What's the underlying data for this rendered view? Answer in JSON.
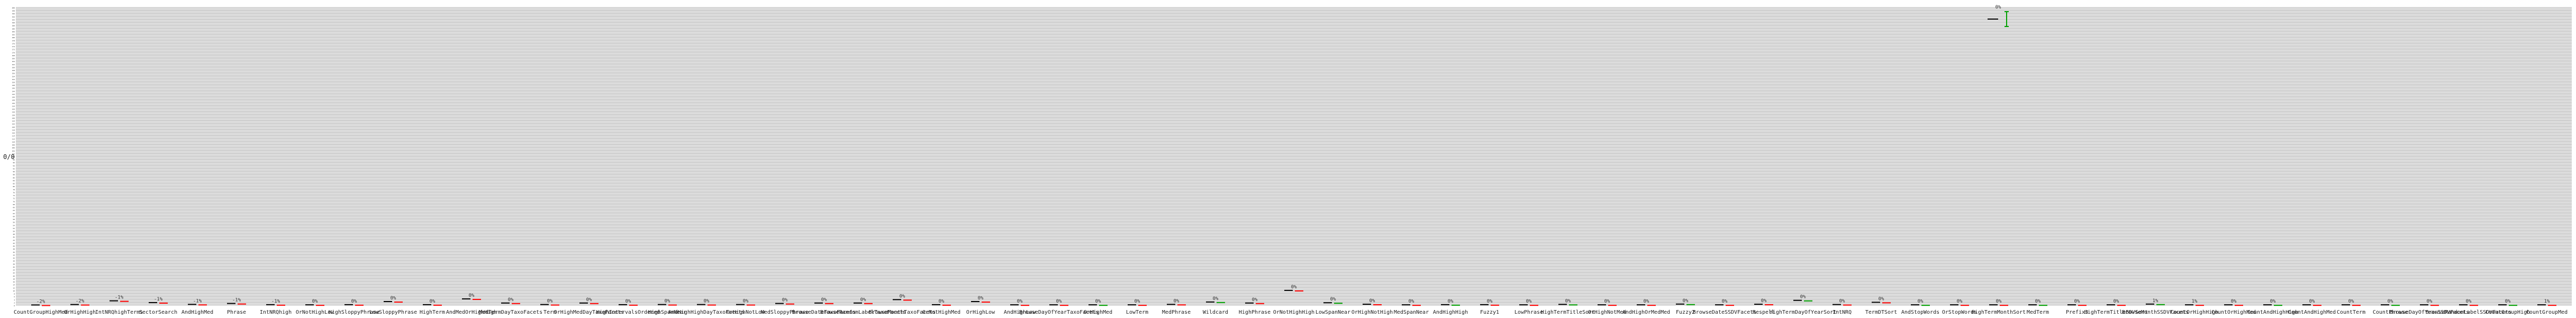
{
  "chart_data": {
    "type": "bar",
    "ylabel": "0/0",
    "ylim": [
      0,
      200
    ],
    "ytick_step": 2,
    "grid": true,
    "series_colors": [
      "#000000",
      "#ff0000",
      "#00a000"
    ],
    "categories": [
      "CountGroupHighMed",
      "OrHighHigh",
      "IntNRQhighTerms",
      "SectorSearch",
      "AndHighMed",
      "Phrase",
      "IntNRQhigh",
      "OrNotHighLow",
      "HighSloppyPhrase",
      "LowSloppyPhrase",
      "HighTerm",
      "AndMedOrHighHigh",
      "MedTermDayTaxoFacets",
      "Term",
      "OrHighMedDayTaxoFacets",
      "HighIntervalsOrdered",
      "HighSpanNear",
      "AndHighHighDayTaxoFacets",
      "OrHighNotLow",
      "MedSloppyPhrase",
      "BrowseDateTaxoFacets",
      "BrowseRandomLabelTaxoFacets",
      "BrowseMonthTaxoFacets",
      "OrNotHighMed",
      "OrHighLow",
      "AndHighLow",
      "BrowseDayOfYearTaxoFacets",
      "OrHighMed",
      "LowTerm",
      "MedPhrase",
      "Wildcard",
      "HighPhrase",
      "OrNotHighHigh",
      "LowSpanNear",
      "OrHighNotHigh",
      "MedSpanNear",
      "AndHighHigh",
      "Fuzzy1",
      "LowPhrase",
      "HighTermTitleSort",
      "OrHighNotMed",
      "AndHighOrMedMed",
      "Fuzzy2",
      "BrowseDateSSDVFacets",
      "Respell",
      "HighTermDayOfYearSort",
      "IntNRQ",
      "TermDTSort",
      "AndStopWords",
      "OrStopWords",
      "HighTermMonthSort",
      "MedTerm",
      "Prefix3",
      "HighTermTitleBDVSort",
      "BrowseMonthSSDVFacets",
      "CountOrHighHigh",
      "CountOrHighMed",
      "CountAndHighHigh",
      "CountAndHighMed",
      "CountTerm",
      "CountPhrase",
      "BrowseDayOfYearSSDVFacets",
      "BrowseRandomLabelSSDVFacets",
      "CountGroupHigh",
      "CountGroupMed"
    ],
    "visible_category_labels": [
      "CountOrHighHigh",
      "CountOrHighMed",
      "HighSectorSearch",
      "CountOrHighMed",
      "Phrase",
      "IntNRQ",
      "HighTermDayOfYearSort",
      "BrowseDateTaxoFacets",
      "OrHighNotHigh",
      "HighIntervalsOrdered",
      "Term",
      "OrHighMedDayTaxoFacets",
      "OrHighNotLow",
      "MedSloppyPhrase",
      "OrHighNotHigh",
      "Wildcard",
      "BrowseMonthTaxoFacets",
      "OrHighMed",
      "OrStopWords",
      "OrHighHigh",
      "AndHighMed",
      "OrTerms",
      "OrHighMedDayOfYearSort",
      "AndStopWords",
      "Wildcard",
      "OrHighLow",
      "AndHighHigh",
      "AndStopWords",
      "OrTermsStopWords",
      "PhraseHighMed",
      "AndTermsStopWords",
      "AndHighNotHighSelfAnd",
      "HighTermTitleSort",
      "AndStopWords",
      "MedPhrase",
      "TermMonthSort",
      "HighTermDayOfYearSort",
      "AndHighMedOrHighHigh",
      "CountAndHighMed",
      "Fuzzy2",
      "TermTitleSort",
      "Prefix3",
      "TermDTSort",
      "CountTermAndHighOrHighMed",
      "CountPhrase",
      "CountOrHighMed",
      "CountOrHighHigh",
      "CountAndHighHigh",
      "CountGroupHigh",
      "CountGroupMed"
    ],
    "pct_labels": [
      "-2%",
      "-1%",
      "-1%",
      "-2%",
      "-1%",
      "-1%",
      "-1%",
      "-1%",
      "-1%",
      "0%",
      "0%",
      "0%",
      "0%",
      "0%",
      "0%",
      "1%",
      "1%",
      "1%",
      "2%",
      "3%",
      "0%"
    ],
    "bars": [
      {
        "old": 0.2,
        "new": 0.2,
        "delta": "-2%"
      },
      {
        "old": 0.5,
        "new": 0.5,
        "delta": "-2%"
      },
      {
        "old": 3.0,
        "new": 3.0,
        "delta": "-1%"
      },
      {
        "old": 1.8,
        "new": 1.8,
        "delta": "-1%"
      },
      {
        "old": 0.6,
        "new": 0.6,
        "delta": "-1%"
      },
      {
        "old": 1.2,
        "new": 1.2,
        "delta": "-1%"
      },
      {
        "old": 0.4,
        "new": 0.4,
        "delta": "-1%"
      },
      {
        "old": 0.3,
        "new": 0.3,
        "delta": "0%"
      },
      {
        "old": 0.4,
        "new": 0.4,
        "delta": "0%"
      },
      {
        "old": 2.5,
        "new": 2.5,
        "delta": "0%"
      },
      {
        "old": 0.4,
        "new": 0.4,
        "delta": "0%"
      },
      {
        "old": 4.3,
        "new": 4.3,
        "delta": "0%"
      },
      {
        "old": 1.5,
        "new": 1.5,
        "delta": "0%"
      },
      {
        "old": 0.5,
        "new": 0.5,
        "delta": "0%"
      },
      {
        "old": 1.5,
        "new": 1.5,
        "delta": "0%"
      },
      {
        "old": 0.4,
        "new": 0.4,
        "delta": "0%"
      },
      {
        "old": 0.5,
        "new": 0.5,
        "delta": "0%"
      },
      {
        "old": 0.5,
        "new": 0.5,
        "delta": "0%"
      },
      {
        "old": 0.5,
        "new": 0.5,
        "delta": "0%"
      },
      {
        "old": 1.2,
        "new": 1.2,
        "delta": "0%"
      },
      {
        "old": 1.5,
        "new": 1.5,
        "delta": "0%"
      },
      {
        "old": 1.5,
        "new": 1.5,
        "delta": "0%"
      },
      {
        "old": 3.8,
        "new": 3.8,
        "delta": "0%"
      },
      {
        "old": 0.4,
        "new": 0.4,
        "delta": "0%"
      },
      {
        "old": 2.5,
        "new": 2.5,
        "delta": "0%"
      },
      {
        "old": 0.3,
        "new": 0.3,
        "delta": "0%"
      },
      {
        "old": 0.3,
        "new": 0.3,
        "delta": "0%"
      },
      {
        "old": 0.3,
        "new": 0.3,
        "delta": "0%"
      },
      {
        "old": 0.3,
        "new": 0.3,
        "delta": "0%"
      },
      {
        "old": 0.6,
        "new": 0.6,
        "delta": "0%"
      },
      {
        "old": 2.2,
        "new": 2.2,
        "delta": "0%"
      },
      {
        "old": 1.5,
        "new": 1.5,
        "delta": "0%"
      },
      {
        "old": 10.0,
        "new": 10.0,
        "delta": "0%"
      },
      {
        "old": 1.7,
        "new": 1.7,
        "delta": "0%"
      },
      {
        "old": 0.7,
        "new": 0.7,
        "delta": "0%"
      },
      {
        "old": 0.3,
        "new": 0.3,
        "delta": "0%"
      },
      {
        "old": 0.4,
        "new": 0.4,
        "delta": "0%"
      },
      {
        "old": 0.4,
        "new": 0.4,
        "delta": "0%"
      },
      {
        "old": 0.3,
        "new": 0.3,
        "delta": "0%"
      },
      {
        "old": 0.6,
        "new": 0.6,
        "delta": "0%"
      },
      {
        "old": 0.3,
        "new": 0.3,
        "delta": "0%"
      },
      {
        "old": 0.3,
        "new": 0.3,
        "delta": "0%"
      },
      {
        "old": 0.8,
        "new": 0.8,
        "delta": "0%"
      },
      {
        "old": 0.3,
        "new": 0.3,
        "delta": "0%"
      },
      {
        "old": 0.7,
        "new": 0.7,
        "delta": "0%"
      },
      {
        "old": 3.3,
        "new": 3.3,
        "delta": "0%"
      },
      {
        "old": 0.5,
        "new": 0.5,
        "delta": "0%"
      },
      {
        "old": 2.0,
        "new": 2.0,
        "delta": "0%"
      },
      {
        "old": 0.3,
        "new": 0.3,
        "delta": "0%"
      },
      {
        "old": 0.3,
        "new": 0.3,
        "delta": "0%"
      },
      {
        "old": 0.3,
        "new": 0.3,
        "delta": "0%"
      },
      {
        "old": 0.3,
        "new": 0.3,
        "delta": "0%"
      },
      {
        "old": 0.3,
        "new": 0.3,
        "delta": "0%"
      },
      {
        "old": 0.3,
        "new": 0.3,
        "delta": "0%"
      },
      {
        "old": 0.8,
        "new": 0.8,
        "delta": "1%"
      },
      {
        "old": 0.3,
        "new": 0.3,
        "delta": "1%"
      },
      {
        "old": 0.3,
        "new": 0.3,
        "delta": "0%"
      },
      {
        "old": 0.3,
        "new": 0.3,
        "delta": "0%"
      },
      {
        "old": 0.3,
        "new": 0.3,
        "delta": "0%"
      },
      {
        "old": 0.3,
        "new": 0.3,
        "delta": "0%"
      },
      {
        "old": 0.3,
        "new": 0.3,
        "delta": "0%"
      },
      {
        "old": 0.3,
        "new": 0.3,
        "delta": "0%"
      },
      {
        "old": 0.3,
        "new": 0.3,
        "delta": "0%"
      },
      {
        "old": 0.3,
        "new": 0.3,
        "delta": "0%"
      },
      {
        "old": 0.3,
        "new": 0.3,
        "delta": "1%"
      }
    ],
    "outlier": {
      "old": 200.0,
      "new": 200.0,
      "delta": "0%"
    }
  }
}
